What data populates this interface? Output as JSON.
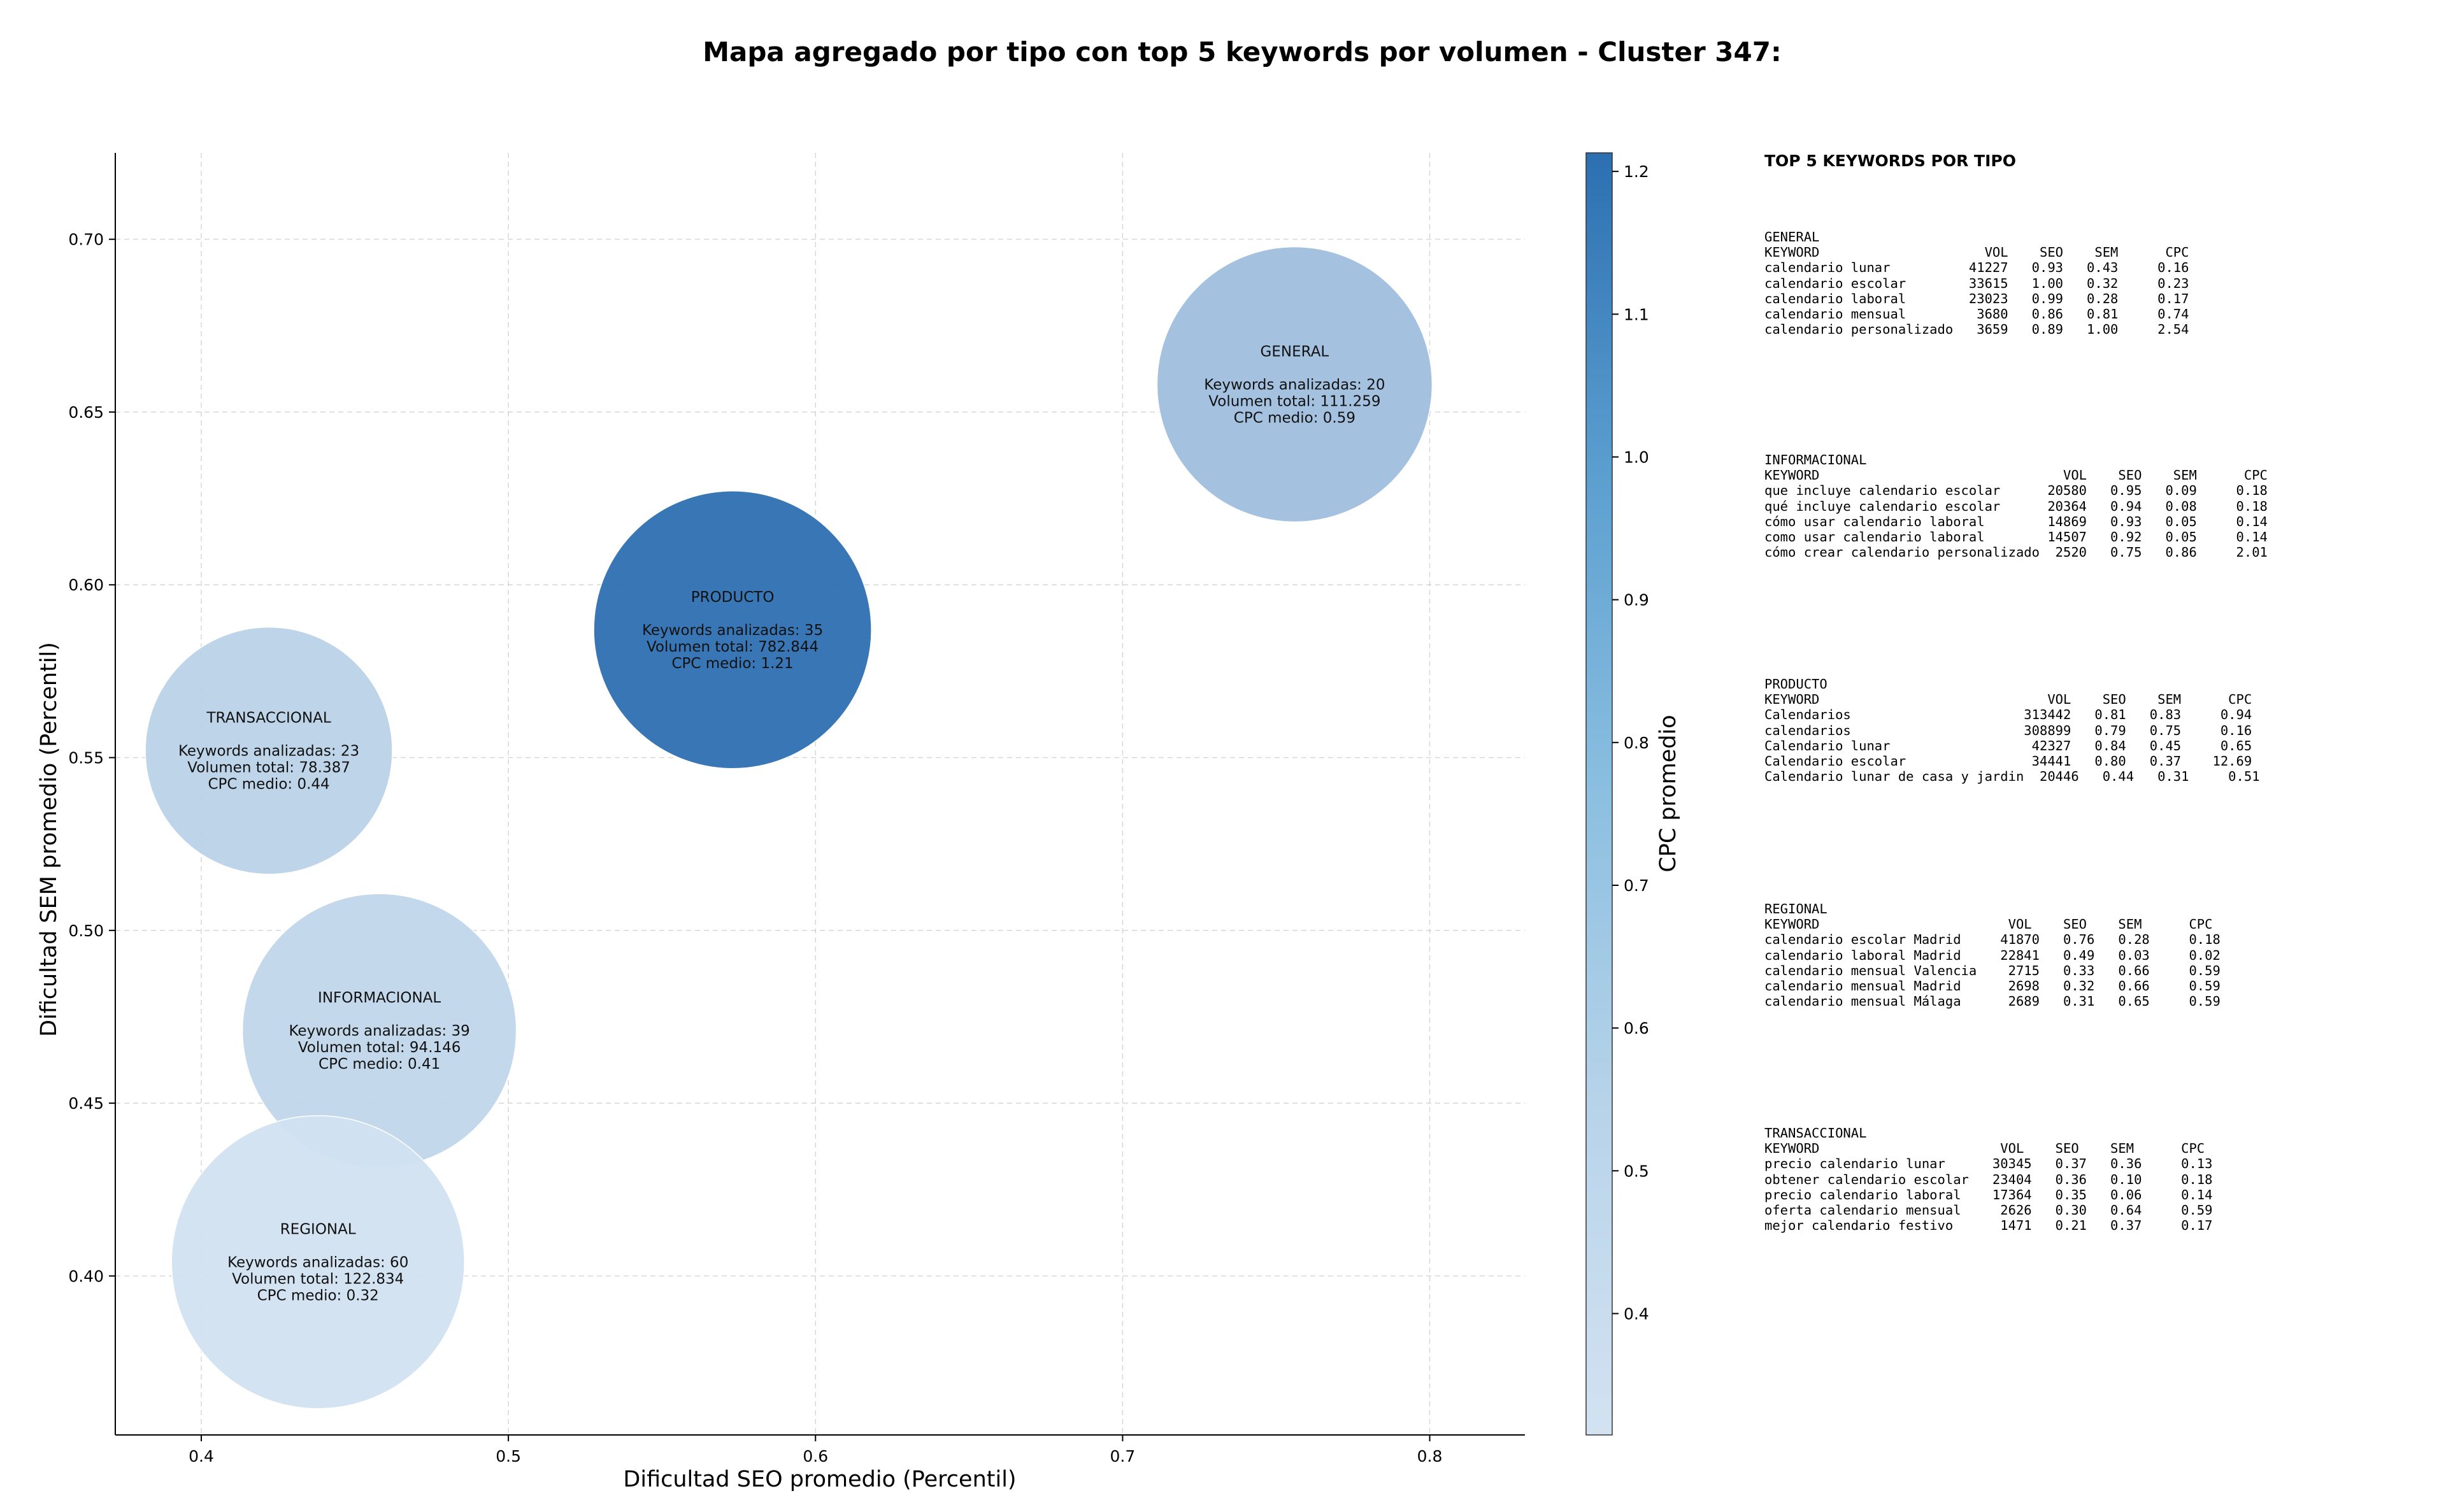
{
  "chart_data": {
    "type": "scatter",
    "title": "Mapa agregado por tipo con top 5 keywords por volumen - Cluster 347:",
    "xlabel": "Dificultad SEO promedio (Percentil)",
    "ylabel": "Dificultad SEM promedio (Percentil)",
    "xlim": [
      0.372,
      0.831
    ],
    "ylim": [
      0.354,
      0.725
    ],
    "xticks": [
      "0.4",
      "0.5",
      "0.6",
      "0.7",
      "0.8"
    ],
    "xtick_values": [
      0.4,
      0.5,
      0.6,
      0.7,
      0.8
    ],
    "yticks": [
      "0.40",
      "0.45",
      "0.50",
      "0.55",
      "0.60",
      "0.65",
      "0.70"
    ],
    "ytick_values": [
      0.4,
      0.45,
      0.5,
      0.55,
      0.6,
      0.65,
      0.7
    ],
    "grid": true,
    "colorbar": {
      "label": "CPC promedio",
      "min": 0.315,
      "max": 1.213,
      "ticks": [
        "0.4",
        "0.5",
        "0.6",
        "0.7",
        "0.8",
        "0.9",
        "1.0",
        "1.1",
        "1.2"
      ],
      "tick_values": [
        0.4,
        0.5,
        0.6,
        0.7,
        0.8,
        0.9,
        1.0,
        1.1,
        1.2
      ],
      "colors": [
        "#d2e2f1",
        "#2c6fb1"
      ]
    },
    "points": [
      {
        "label": "GENERAL",
        "seo": 0.756,
        "sem": 0.658,
        "cpc": 0.59,
        "size": 20,
        "text": [
          "GENERAL",
          "",
          "Keywords analizadas: 20",
          "Volumen total: 111.259",
          "CPC medio: 0.59"
        ]
      },
      {
        "label": "PRODUCTO",
        "seo": 0.573,
        "sem": 0.587,
        "cpc": 1.21,
        "size": 35,
        "text": [
          "PRODUCTO",
          "",
          "Keywords analizadas: 35",
          "Volumen total: 782.844",
          "CPC medio: 1.21"
        ]
      },
      {
        "label": "TRANSACCIONAL",
        "seo": 0.422,
        "sem": 0.552,
        "cpc": 0.44,
        "size": 23,
        "text": [
          "TRANSACCIONAL",
          "",
          "Keywords analizadas: 23",
          "Volumen total: 78.387",
          "CPC medio: 0.44"
        ]
      },
      {
        "label": "INFORMACIONAL",
        "seo": 0.458,
        "sem": 0.471,
        "cpc": 0.41,
        "size": 39,
        "text": [
          "INFORMACIONAL",
          "",
          "Keywords analizadas: 39",
          "Volumen total: 94.146",
          "CPC medio: 0.41"
        ]
      },
      {
        "label": "REGIONAL",
        "seo": 0.438,
        "sem": 0.404,
        "cpc": 0.32,
        "size": 60,
        "text": [
          "REGIONAL",
          "",
          "Keywords analizadas: 60",
          "Volumen total: 122.834",
          "CPC medio: 0.32"
        ]
      }
    ]
  },
  "side_panel": {
    "title": "TOP 5 KEYWORDS POR TIPO",
    "blocks": [
      {
        "name": "GENERAL",
        "lines": [
          "GENERAL",
          "KEYWORD                     VOL    SEO    SEM      CPC",
          "calendario lunar          41227   0.93   0.43     0.16",
          "calendario escolar        33615   1.00   0.32     0.23",
          "calendario laboral        23023   0.99   0.28     0.17",
          "calendario mensual         3680   0.86   0.81     0.74",
          "calendario personalizado   3659   0.89   1.00     2.54"
        ]
      },
      {
        "name": "INFORMACIONAL",
        "lines": [
          "INFORMACIONAL",
          "KEYWORD                               VOL    SEO    SEM      CPC",
          "que incluye calendario escolar      20580   0.95   0.09     0.18",
          "qué incluye calendario escolar      20364   0.94   0.08     0.18",
          "cómo usar calendario laboral        14869   0.93   0.05     0.14",
          "como usar calendario laboral        14507   0.92   0.05     0.14",
          "cómo crear calendario personalizado  2520   0.75   0.86     2.01"
        ]
      },
      {
        "name": "PRODUCTO",
        "lines": [
          "PRODUCTO",
          "KEYWORD                             VOL    SEO    SEM      CPC",
          "Calendarios                      313442   0.81   0.83     0.94",
          "calendarios                      308899   0.79   0.75     0.16",
          "Calendario lunar                  42327   0.84   0.45     0.65",
          "Calendario escolar                34441   0.80   0.37    12.69",
          "Calendario lunar de casa y jardin  20446   0.44   0.31     0.51"
        ]
      },
      {
        "name": "REGIONAL",
        "lines": [
          "REGIONAL",
          "KEYWORD                        VOL    SEO    SEM      CPC",
          "calendario escolar Madrid     41870   0.76   0.28     0.18",
          "calendario laboral Madrid     22841   0.49   0.03     0.02",
          "calendario mensual Valencia    2715   0.33   0.66     0.59",
          "calendario mensual Madrid      2698   0.32   0.66     0.59",
          "calendario mensual Málaga      2689   0.31   0.65     0.59"
        ]
      },
      {
        "name": "TRANSACCIONAL",
        "lines": [
          "TRANSACCIONAL",
          "KEYWORD                       VOL    SEO    SEM      CPC",
          "precio calendario lunar      30345   0.37   0.36     0.13",
          "obtener calendario escolar   23404   0.36   0.10     0.18",
          "precio calendario laboral    17364   0.35   0.06     0.14",
          "oferta calendario mensual     2626   0.30   0.64     0.59",
          "mejor calendario festivo      1471   0.21   0.37     0.17"
        ]
      }
    ]
  }
}
